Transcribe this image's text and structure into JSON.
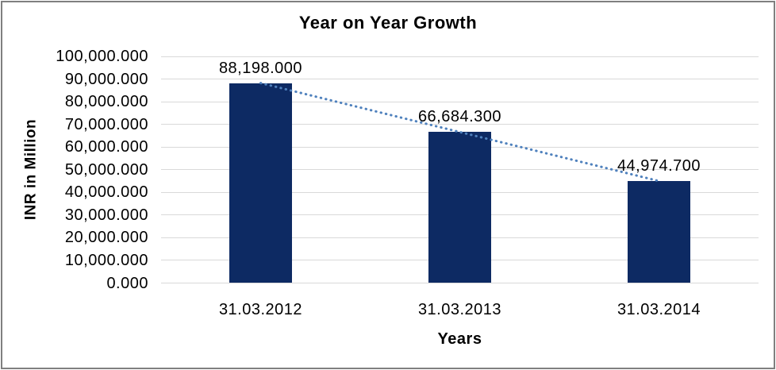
{
  "chart_data": {
    "type": "bar",
    "title": "Year on Year Growth",
    "xlabel": "Years",
    "ylabel": "INR in Million",
    "categories": [
      "31.03.2012",
      "31.03.2013",
      "31.03.2014"
    ],
    "values": [
      88198.0,
      66684.3,
      44974.7
    ],
    "value_labels": [
      "88,198.000",
      "66,684.300",
      "44,974.700"
    ],
    "ylim": [
      0,
      100000
    ],
    "y_tick_step": 10000,
    "y_tick_labels": [
      "0.000",
      "10,000.000",
      "20,000.000",
      "30,000.000",
      "40,000.000",
      "50,000.000",
      "60,000.000",
      "70,000.000",
      "80,000.000",
      "90,000.000",
      "100,000.000"
    ],
    "grid": true,
    "legend": false,
    "trendline": "linear-dotted",
    "colors": {
      "bar": "#0d2a63",
      "trendline": "#4f81bd",
      "gridline": "#d9d9d9",
      "text": "#000000",
      "background": "#ffffff",
      "border": "#7f7f7f"
    }
  }
}
